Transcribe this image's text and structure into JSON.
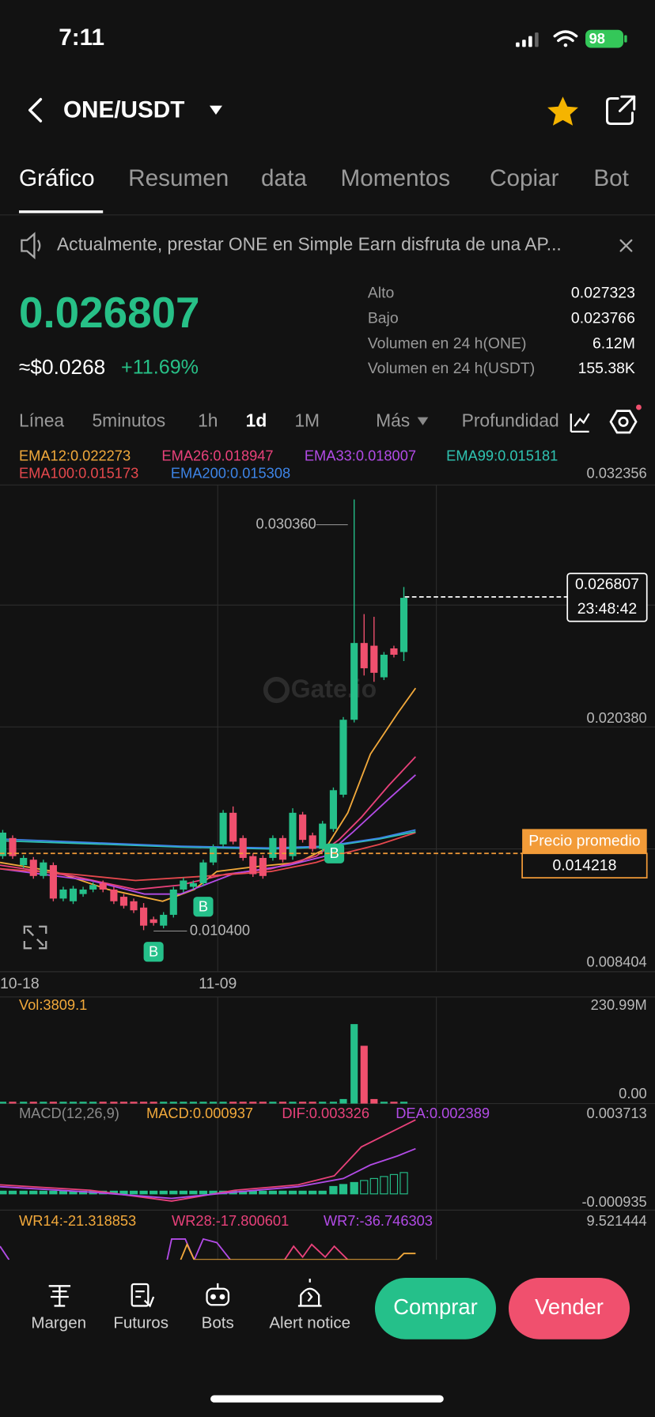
{
  "status_bar": {
    "time": "7:11",
    "battery": "98"
  },
  "header": {
    "pair": "ONE/USDT"
  },
  "tabs": [
    "Gráfico",
    "Resumen",
    "data",
    "Momentos",
    "Copiar",
    "Bot"
  ],
  "notice": "Actualmente, prestar ONE en Simple Earn disfruta de una AP...",
  "ticker": {
    "last": "0.026807",
    "usd": "≈$0.0268",
    "change": "+11.69%",
    "stats": [
      {
        "label": "Alto",
        "value": "0.027323"
      },
      {
        "label": "Bajo",
        "value": "0.023766"
      },
      {
        "label": "Volumen en 24 h(ONE)",
        "value": "6.12M"
      },
      {
        "label": "Volumen en 24 h(USDT)",
        "value": "155.38K"
      }
    ]
  },
  "timeframes": [
    "Línea",
    "5minutos",
    "1h",
    "1d",
    "1M",
    "Más",
    "Profundidad"
  ],
  "chart": {
    "watermark": "Gate.io",
    "ema": [
      {
        "label": "EMA12:0.022273",
        "color": "#f2a93b"
      },
      {
        "label": "EMA26:0.018947",
        "color": "#e8417a"
      },
      {
        "label": "EMA33:0.018007",
        "color": "#b24be6"
      },
      {
        "label": "EMA99:0.015181",
        "color": "#2fc4b2"
      },
      {
        "label": "EMA100:0.015173",
        "color": "#e5484d"
      },
      {
        "label": "EMA200:0.015308",
        "color": "#3d84e6"
      }
    ],
    "price_axis": [
      "0.032356",
      "0.020380",
      "0.008404"
    ],
    "high_label": "0.030360",
    "low_label": "0.010400",
    "last_price": "0.026807",
    "countdown": "23:48:42",
    "avg_title": "Precio promedio",
    "avg_price": "0.014218",
    "signals": [
      "B",
      "B",
      "B"
    ],
    "dates": [
      "10-18",
      "11-09"
    ]
  },
  "volume": {
    "label": "Vol:3809.1",
    "axis": [
      "230.99M",
      "0.00"
    ]
  },
  "macd": {
    "labels": [
      {
        "label": "MACD(12,26,9)",
        "color": "#8a8a8a"
      },
      {
        "label": "MACD:0.000937",
        "color": "#f2a93b"
      },
      {
        "label": "DIF:0.003326",
        "color": "#e8417a"
      },
      {
        "label": "DEA:0.002389",
        "color": "#b24be6"
      }
    ],
    "axis": [
      "0.003713",
      "-0.000935"
    ]
  },
  "wr": {
    "labels": [
      {
        "label": "WR14:-21.318853",
        "color": "#f2a93b"
      },
      {
        "label": "WR28:-17.800601",
        "color": "#e8417a"
      },
      {
        "label": "WR7:-36.746303",
        "color": "#b24be6"
      }
    ],
    "axis": [
      "9.521444"
    ]
  },
  "nav": [
    "Margen",
    "Futuros",
    "Bots",
    "Alert notice"
  ],
  "actions": {
    "buy": "Comprar",
    "sell": "Vender"
  }
}
